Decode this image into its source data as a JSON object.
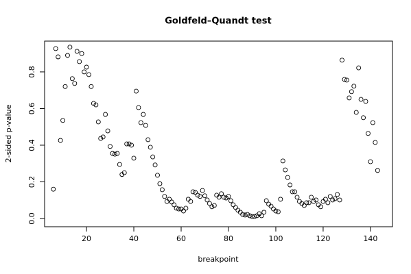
{
  "chart_data": {
    "type": "scatter",
    "title": "Goldfeld–Quandt test",
    "xlabel": "breakpoint",
    "ylabel": "2-sided p-value",
    "x": [
      6,
      7,
      8,
      9,
      10,
      11,
      12,
      13,
      14,
      15,
      16,
      17,
      18,
      19,
      20,
      21,
      22,
      23,
      24,
      25,
      26,
      27,
      28,
      29,
      30,
      31,
      32,
      33,
      34,
      35,
      36,
      37,
      38,
      39,
      40,
      41,
      42,
      43,
      44,
      45,
      46,
      47,
      48,
      49,
      50,
      51,
      52,
      53,
      54,
      55,
      56,
      57,
      58,
      59,
      60,
      61,
      62,
      63,
      64,
      65,
      66,
      67,
      68,
      69,
      70,
      71,
      72,
      73,
      74,
      75,
      76,
      77,
      78,
      79,
      80,
      81,
      82,
      83,
      84,
      85,
      86,
      87,
      88,
      89,
      90,
      91,
      92,
      93,
      94,
      95,
      96,
      97,
      98,
      99,
      100,
      101,
      102,
      103,
      104,
      105,
      106,
      107,
      108,
      109,
      110,
      111,
      112,
      113,
      114,
      115,
      116,
      117,
      118,
      119,
      120,
      121,
      122,
      123,
      124,
      125,
      126,
      127,
      128,
      129,
      130,
      131,
      132,
      133,
      134,
      135,
      136,
      137,
      138,
      139,
      140,
      141,
      142,
      143
    ],
    "values": [
      0.16,
      0.927,
      0.882,
      0.426,
      0.535,
      0.72,
      0.89,
      0.935,
      0.763,
      0.737,
      0.912,
      0.856,
      0.9,
      0.8,
      0.826,
      0.785,
      0.72,
      0.628,
      0.62,
      0.527,
      0.437,
      0.445,
      0.568,
      0.478,
      0.393,
      0.355,
      0.351,
      0.355,
      0.295,
      0.24,
      0.25,
      0.407,
      0.407,
      0.4,
      0.329,
      0.695,
      0.605,
      0.523,
      0.568,
      0.508,
      0.43,
      0.389,
      0.336,
      0.292,
      0.236,
      0.19,
      0.157,
      0.12,
      0.093,
      0.105,
      0.09,
      0.075,
      0.056,
      0.052,
      0.052,
      0.041,
      0.056,
      0.105,
      0.093,
      0.146,
      0.142,
      0.127,
      0.12,
      0.153,
      0.124,
      0.101,
      0.082,
      0.064,
      0.071,
      0.127,
      0.116,
      0.135,
      0.116,
      0.112,
      0.12,
      0.097,
      0.075,
      0.06,
      0.045,
      0.034,
      0.022,
      0.019,
      0.022,
      0.015,
      0.011,
      0.011,
      0.015,
      0.026,
      0.015,
      0.034,
      0.097,
      0.078,
      0.067,
      0.052,
      0.041,
      0.037,
      0.105,
      0.314,
      0.265,
      0.224,
      0.183,
      0.146,
      0.146,
      0.116,
      0.093,
      0.082,
      0.071,
      0.086,
      0.086,
      0.116,
      0.093,
      0.101,
      0.075,
      0.064,
      0.093,
      0.105,
      0.086,
      0.12,
      0.101,
      0.108,
      0.131,
      0.101,
      0.864,
      0.759,
      0.755,
      0.658,
      0.692,
      0.722,
      0.579,
      0.822,
      0.65,
      0.55,
      0.639,
      0.464,
      0.31,
      0.523,
      0.415,
      0.262
    ],
    "color": "#000000",
    "xlim": [
      2.3,
      149.3
    ],
    "ylim": [
      -0.045,
      0.968
    ],
    "xticks": [
      20,
      40,
      60,
      80,
      100,
      120,
      140
    ],
    "yticks": [
      {
        "value": 0,
        "label": "0.0"
      },
      0.2,
      0.4,
      0.6,
      0.8
    ]
  }
}
